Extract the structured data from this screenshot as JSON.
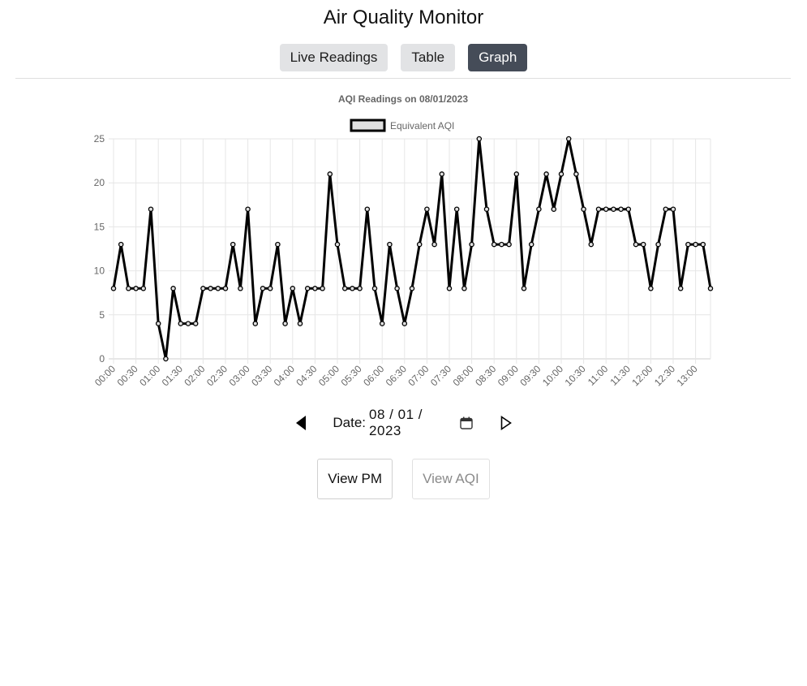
{
  "app": {
    "title": "Air Quality Monitor"
  },
  "tabs": [
    {
      "label": "Live Readings",
      "active": false
    },
    {
      "label": "Table",
      "active": false
    },
    {
      "label": "Graph",
      "active": true
    }
  ],
  "date_nav": {
    "label": "Date:",
    "value": "08 / 01 / 2023",
    "prev_icon": "triangle-left-icon",
    "next_icon": "triangle-right-outline-icon",
    "calendar_icon": "calendar-icon"
  },
  "view_buttons": {
    "pm_label": "View PM",
    "aqi_label": "View AQI",
    "aqi_disabled": true
  },
  "colors": {
    "active_tab": "#454c58",
    "inactive_tab": "#e2e3e5",
    "line": "#000000",
    "legend_fill": "#e0e0e0"
  },
  "chart_data": {
    "type": "line",
    "title": "AQI Readings on 08/01/2023",
    "legend": "top",
    "grid": true,
    "ylim": [
      0,
      25
    ],
    "yticks": [
      0,
      5,
      10,
      15,
      20,
      25
    ],
    "xtick_labels": [
      "00:00",
      "00:30",
      "01:00",
      "01:30",
      "02:00",
      "02:30",
      "03:00",
      "03:30",
      "04:00",
      "04:30",
      "05:00",
      "05:30",
      "06:00",
      "06:30",
      "07:00",
      "07:30",
      "08:00",
      "08:30",
      "09:00",
      "09:30",
      "10:00",
      "10:30",
      "11:00",
      "11:30",
      "12:00",
      "12:30",
      "13:00"
    ],
    "series": [
      {
        "name": "Equivalent AQI",
        "values": [
          8,
          13,
          8,
          8,
          8,
          17,
          4,
          0,
          8,
          4,
          4,
          4,
          8,
          8,
          8,
          8,
          13,
          8,
          17,
          4,
          8,
          8,
          13,
          4,
          8,
          4,
          8,
          8,
          8,
          21,
          13,
          8,
          8,
          8,
          17,
          8,
          4,
          13,
          8,
          4,
          8,
          13,
          17,
          13,
          21,
          8,
          17,
          8,
          13,
          25,
          17,
          13,
          13,
          13,
          21,
          8,
          13,
          17,
          21,
          17,
          21,
          25,
          21,
          17,
          13,
          17,
          17,
          17,
          17,
          17,
          13,
          13,
          8,
          13,
          17,
          17,
          8,
          13,
          13,
          13,
          8
        ]
      }
    ]
  }
}
